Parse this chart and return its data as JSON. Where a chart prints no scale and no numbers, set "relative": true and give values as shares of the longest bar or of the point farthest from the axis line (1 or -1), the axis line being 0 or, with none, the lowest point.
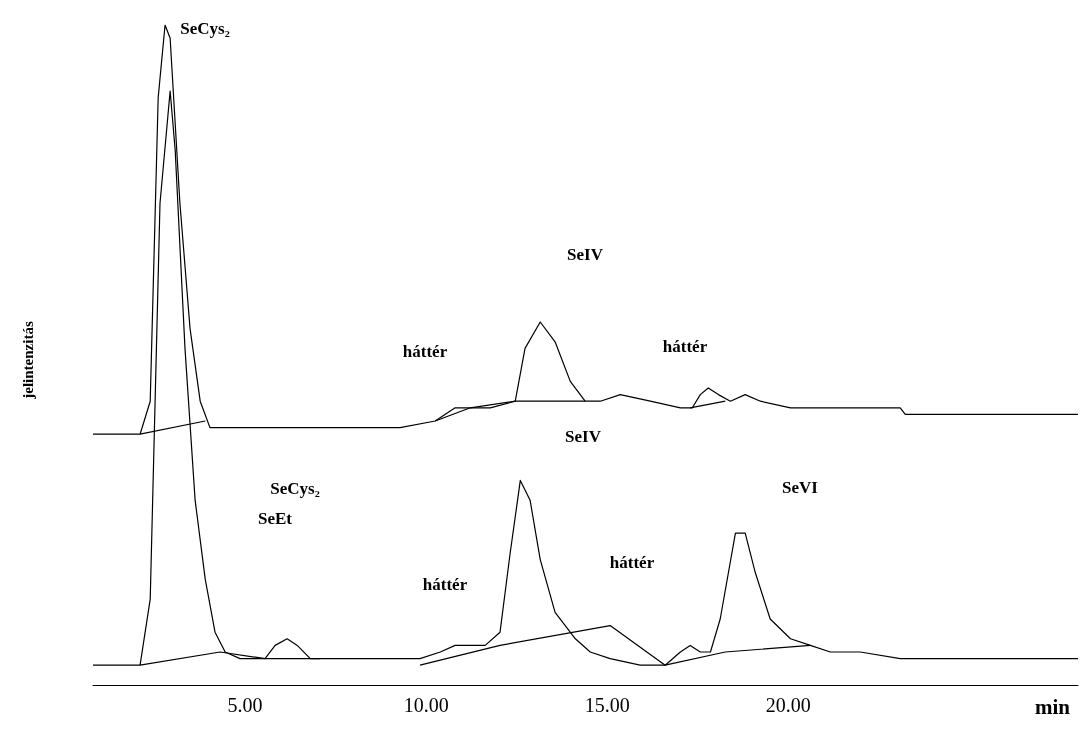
{
  "chart_data": {
    "type": "line",
    "relative": true,
    "xlabel": "min",
    "ylabel": "jelintenzitás",
    "xlim": [
      0.8,
      28
    ],
    "xticks": [
      {
        "value": 5,
        "label": "5.00"
      },
      {
        "value": 10,
        "label": "10.00"
      },
      {
        "value": 15,
        "label": "15.00"
      },
      {
        "value": 20,
        "label": "20.00"
      }
    ],
    "tick_labels": "x",
    "marker": "none",
    "line_style": "solid",
    "series": [
      {
        "color": "#000000",
        "x": [
          0.8,
          2.1,
          2.38,
          2.6,
          2.79,
          2.93,
          3.2,
          3.48,
          3.76,
          4.03,
          4.59,
          5.0,
          5.83,
          6.8,
          7.9,
          9.28,
          10.25,
          10.8,
          11.22,
          11.77,
          12.46,
          12.73,
          13.15,
          13.56,
          13.98,
          14.39,
          14.81,
          15.36,
          16.19,
          17.02,
          17.35,
          17.57,
          17.79,
          18.07,
          18.4,
          18.81,
          19.23,
          20.06,
          20.88,
          21.71,
          22.54,
          23.09,
          23.23,
          24.48,
          25.86,
          28.0
        ],
        "values": [
          0.38,
          0.38,
          0.43,
          0.89,
          1.0,
          0.98,
          0.73,
          0.54,
          0.43,
          0.39,
          0.39,
          0.39,
          0.39,
          0.39,
          0.39,
          0.39,
          0.4,
          0.42,
          0.42,
          0.42,
          0.43,
          0.51,
          0.55,
          0.52,
          0.46,
          0.43,
          0.43,
          0.44,
          0.43,
          0.42,
          0.42,
          0.44,
          0.45,
          0.44,
          0.43,
          0.44,
          0.43,
          0.42,
          0.42,
          0.42,
          0.42,
          0.42,
          0.41,
          0.41,
          0.41,
          0.41
        ]
      },
      {
        "color": "#000000",
        "x": [
          2.1,
          3.9
        ],
        "values": [
          0.38,
          0.4
        ]
      },
      {
        "color": "#000000",
        "x": [
          10.25,
          11.22,
          12.46,
          14.39
        ],
        "values": [
          0.4,
          0.42,
          0.43,
          0.43
        ]
      },
      {
        "color": "#000000",
        "x": [
          17.29,
          18.26
        ],
        "values": [
          0.42,
          0.43
        ]
      },
      {
        "color": "#000000",
        "x": [
          0.8,
          2.1,
          2.38,
          2.65,
          2.93,
          3.07,
          3.34,
          3.62,
          3.9,
          4.17,
          4.45,
          4.86,
          5.55,
          5.83,
          6.16,
          6.44,
          6.8,
          7.35,
          8.73,
          9.83,
          10.39,
          10.8,
          11.22,
          11.63,
          12.04,
          12.32,
          12.6,
          12.87,
          13.15,
          13.56,
          14.12,
          14.53,
          15.08,
          15.91,
          16.6,
          17.02,
          17.29,
          17.57,
          17.85,
          18.12,
          18.54,
          18.81,
          19.09,
          19.5,
          20.06,
          20.61,
          21.16,
          21.99,
          23.09,
          24.48,
          25.86,
          28.0
        ],
        "values": [
          0.03,
          0.03,
          0.13,
          0.73,
          0.9,
          0.81,
          0.51,
          0.28,
          0.16,
          0.08,
          0.05,
          0.04,
          0.04,
          0.06,
          0.07,
          0.06,
          0.04,
          0.04,
          0.04,
          0.04,
          0.05,
          0.06,
          0.06,
          0.06,
          0.08,
          0.2,
          0.31,
          0.28,
          0.19,
          0.11,
          0.07,
          0.05,
          0.04,
          0.03,
          0.03,
          0.05,
          0.06,
          0.05,
          0.05,
          0.1,
          0.23,
          0.23,
          0.17,
          0.1,
          0.07,
          0.06,
          0.05,
          0.05,
          0.04,
          0.04,
          0.04,
          0.04
        ]
      },
      {
        "color": "#000000",
        "x": [
          2.1,
          4.31,
          5.55,
          7.07
        ],
        "values": [
          0.03,
          0.05,
          0.04,
          0.04
        ]
      },
      {
        "color": "#000000",
        "x": [
          9.83,
          12.04,
          15.08,
          16.6
        ],
        "values": [
          0.03,
          0.06,
          0.09,
          0.03
        ]
      },
      {
        "color": "#000000",
        "x": [
          16.6,
          18.26,
          20.61
        ],
        "values": [
          0.03,
          0.05,
          0.06
        ]
      }
    ],
    "annotations": [
      "SeCys₂",
      "SeCys₂",
      "SeEt",
      "háttér",
      "SeIV",
      "háttér",
      "SeIV",
      "háttér",
      "háttér",
      "SeVI"
    ]
  }
}
